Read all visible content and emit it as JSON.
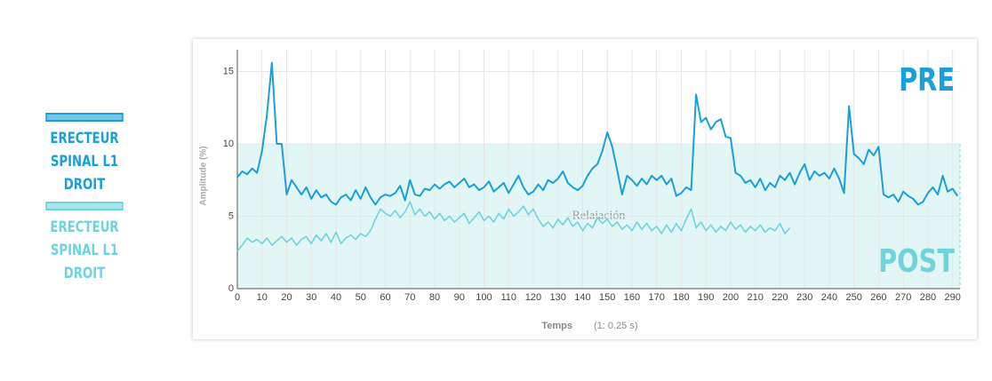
{
  "chart_data": {
    "type": "line",
    "y_label": "Amplitude (%)",
    "x_label": "Temps",
    "x_label_note": "(1: 0.25 s)",
    "xlim": [
      0,
      293
    ],
    "ylim": [
      0,
      16.5
    ],
    "xticks": [
      0,
      10,
      20,
      30,
      40,
      50,
      60,
      70,
      80,
      90,
      100,
      110,
      120,
      130,
      140,
      150,
      160,
      170,
      180,
      190,
      200,
      210,
      220,
      230,
      240,
      250,
      260,
      270,
      280,
      290
    ],
    "yticks": [
      0,
      5,
      10,
      15
    ],
    "grid": true,
    "bands": [
      {
        "from": 0,
        "to": 10,
        "label": "Relajación",
        "color": "#e3f6f6"
      }
    ],
    "annotations": [
      {
        "text": "PRE",
        "color": "#1a9fd9"
      },
      {
        "text": "POST",
        "color": "#6fd3dc"
      }
    ],
    "series": [
      {
        "name": "ERECTEUR SPINAL L1 DROIT",
        "color": "#1a9fd9",
        "x": [
          0,
          2,
          4,
          6,
          8,
          10,
          12,
          14,
          16,
          18,
          20,
          22,
          24,
          26,
          28,
          30,
          32,
          34,
          36,
          38,
          40,
          42,
          44,
          46,
          48,
          50,
          52,
          54,
          56,
          58,
          60,
          62,
          64,
          66,
          68,
          70,
          72,
          74,
          76,
          78,
          80,
          82,
          84,
          86,
          88,
          90,
          92,
          94,
          96,
          98,
          100,
          102,
          104,
          106,
          108,
          110,
          112,
          114,
          116,
          118,
          120,
          122,
          124,
          126,
          128,
          130,
          132,
          134,
          136,
          138,
          140,
          142,
          144,
          146,
          148,
          150,
          152,
          154,
          156,
          158,
          160,
          162,
          164,
          166,
          168,
          170,
          172,
          174,
          176,
          178,
          180,
          182,
          184,
          186,
          188,
          190,
          192,
          194,
          196,
          198,
          200,
          202,
          204,
          206,
          208,
          210,
          212,
          214,
          216,
          218,
          220,
          222,
          224,
          226,
          228,
          230,
          232,
          234,
          236,
          238,
          240,
          242,
          244,
          246,
          248,
          250,
          252,
          254,
          256,
          258,
          260,
          262,
          264,
          266,
          268,
          270,
          272,
          274,
          276,
          278,
          280,
          282,
          284,
          286,
          288,
          290,
          292
        ],
        "values": [
          7.7,
          8.1,
          7.9,
          8.3,
          8.0,
          9.5,
          12.0,
          15.6,
          10.0,
          10.0,
          6.5,
          7.5,
          7.0,
          6.5,
          7.0,
          6.2,
          6.8,
          6.3,
          6.5,
          6.0,
          5.8,
          6.3,
          6.5,
          6.1,
          6.8,
          6.2,
          7.0,
          6.3,
          5.8,
          6.3,
          6.5,
          6.4,
          6.6,
          7.1,
          6.1,
          7.5,
          6.5,
          6.4,
          6.9,
          6.8,
          7.2,
          6.9,
          7.2,
          7.4,
          7.0,
          7.3,
          7.6,
          7.0,
          7.2,
          6.8,
          7.0,
          7.4,
          6.7,
          7.0,
          7.3,
          6.6,
          7.2,
          7.8,
          7.0,
          6.5,
          6.7,
          7.2,
          6.8,
          7.5,
          7.3,
          7.6,
          8.1,
          7.3,
          7.0,
          6.8,
          7.1,
          7.8,
          8.3,
          8.6,
          9.5,
          10.8,
          9.8,
          8.2,
          6.5,
          7.8,
          7.5,
          7.1,
          7.6,
          7.2,
          7.8,
          7.5,
          7.8,
          7.2,
          7.6,
          6.4,
          6.6,
          7.0,
          6.8,
          13.4,
          11.5,
          11.8,
          11.0,
          11.5,
          11.7,
          10.5,
          10.4,
          8.0,
          7.8,
          7.3,
          7.5,
          7.0,
          7.6,
          6.8,
          7.3,
          7.0,
          7.8,
          7.5,
          8.0,
          7.2,
          8.0,
          8.6,
          7.5,
          8.1,
          7.8,
          8.0,
          7.6,
          8.3,
          7.6,
          6.6,
          12.6,
          9.3,
          9.0,
          8.6,
          9.6,
          9.2,
          9.8,
          6.5,
          6.3,
          6.5,
          6.0,
          6.7,
          6.4,
          6.2,
          5.8,
          6.0,
          6.6,
          7.0,
          6.5,
          7.8,
          6.7,
          6.9,
          6.4
        ]
      },
      {
        "name": "ERECTEUR SPINAL L1 DROIT",
        "color": "#6fd3dc",
        "x": [
          0,
          2,
          4,
          6,
          8,
          10,
          12,
          14,
          16,
          18,
          20,
          22,
          24,
          26,
          28,
          30,
          32,
          34,
          36,
          38,
          40,
          42,
          44,
          46,
          48,
          50,
          52,
          54,
          56,
          58,
          60,
          62,
          64,
          66,
          68,
          70,
          72,
          74,
          76,
          78,
          80,
          82,
          84,
          86,
          88,
          90,
          92,
          94,
          96,
          98,
          100,
          102,
          104,
          106,
          108,
          110,
          112,
          114,
          116,
          118,
          120,
          122,
          124,
          126,
          128,
          130,
          132,
          134,
          136,
          138,
          140,
          142,
          144,
          146,
          148,
          150,
          152,
          154,
          156,
          158,
          160,
          162,
          164,
          166,
          168,
          170,
          172,
          174,
          176,
          178,
          180,
          182,
          184,
          186,
          188,
          190,
          192,
          194,
          196,
          198,
          200,
          202,
          204,
          206,
          208,
          210,
          212,
          214,
          216,
          218,
          220,
          222,
          224
        ],
        "values": [
          2.6,
          3.0,
          3.5,
          3.2,
          3.4,
          3.1,
          3.5,
          3.0,
          3.3,
          3.6,
          3.2,
          3.5,
          3.0,
          3.4,
          3.6,
          3.1,
          3.7,
          3.3,
          3.8,
          3.2,
          3.9,
          3.1,
          3.5,
          3.7,
          3.4,
          3.8,
          3.6,
          4.0,
          4.8,
          5.5,
          5.2,
          5.0,
          5.4,
          4.9,
          5.3,
          6.0,
          5.1,
          5.5,
          5.0,
          5.3,
          4.8,
          5.2,
          4.7,
          5.0,
          4.6,
          4.9,
          5.2,
          4.5,
          4.9,
          5.3,
          4.7,
          5.0,
          4.6,
          5.2,
          4.8,
          5.5,
          5.0,
          5.3,
          5.7,
          5.1,
          5.5,
          4.8,
          4.3,
          4.6,
          4.2,
          4.8,
          4.4,
          4.9,
          4.3,
          4.6,
          4.0,
          4.5,
          4.2,
          4.9,
          4.5,
          4.8,
          4.3,
          4.6,
          4.1,
          4.4,
          4.0,
          4.6,
          4.1,
          4.5,
          4.0,
          4.3,
          3.8,
          4.4,
          3.9,
          4.5,
          4.0,
          4.8,
          5.5,
          4.2,
          4.6,
          4.0,
          4.4,
          3.9,
          4.3,
          4.0,
          4.6,
          4.1,
          4.4,
          3.9,
          4.3,
          4.0,
          4.4,
          3.9,
          4.2,
          4.0,
          4.5,
          3.8,
          4.2
        ]
      }
    ]
  }
}
